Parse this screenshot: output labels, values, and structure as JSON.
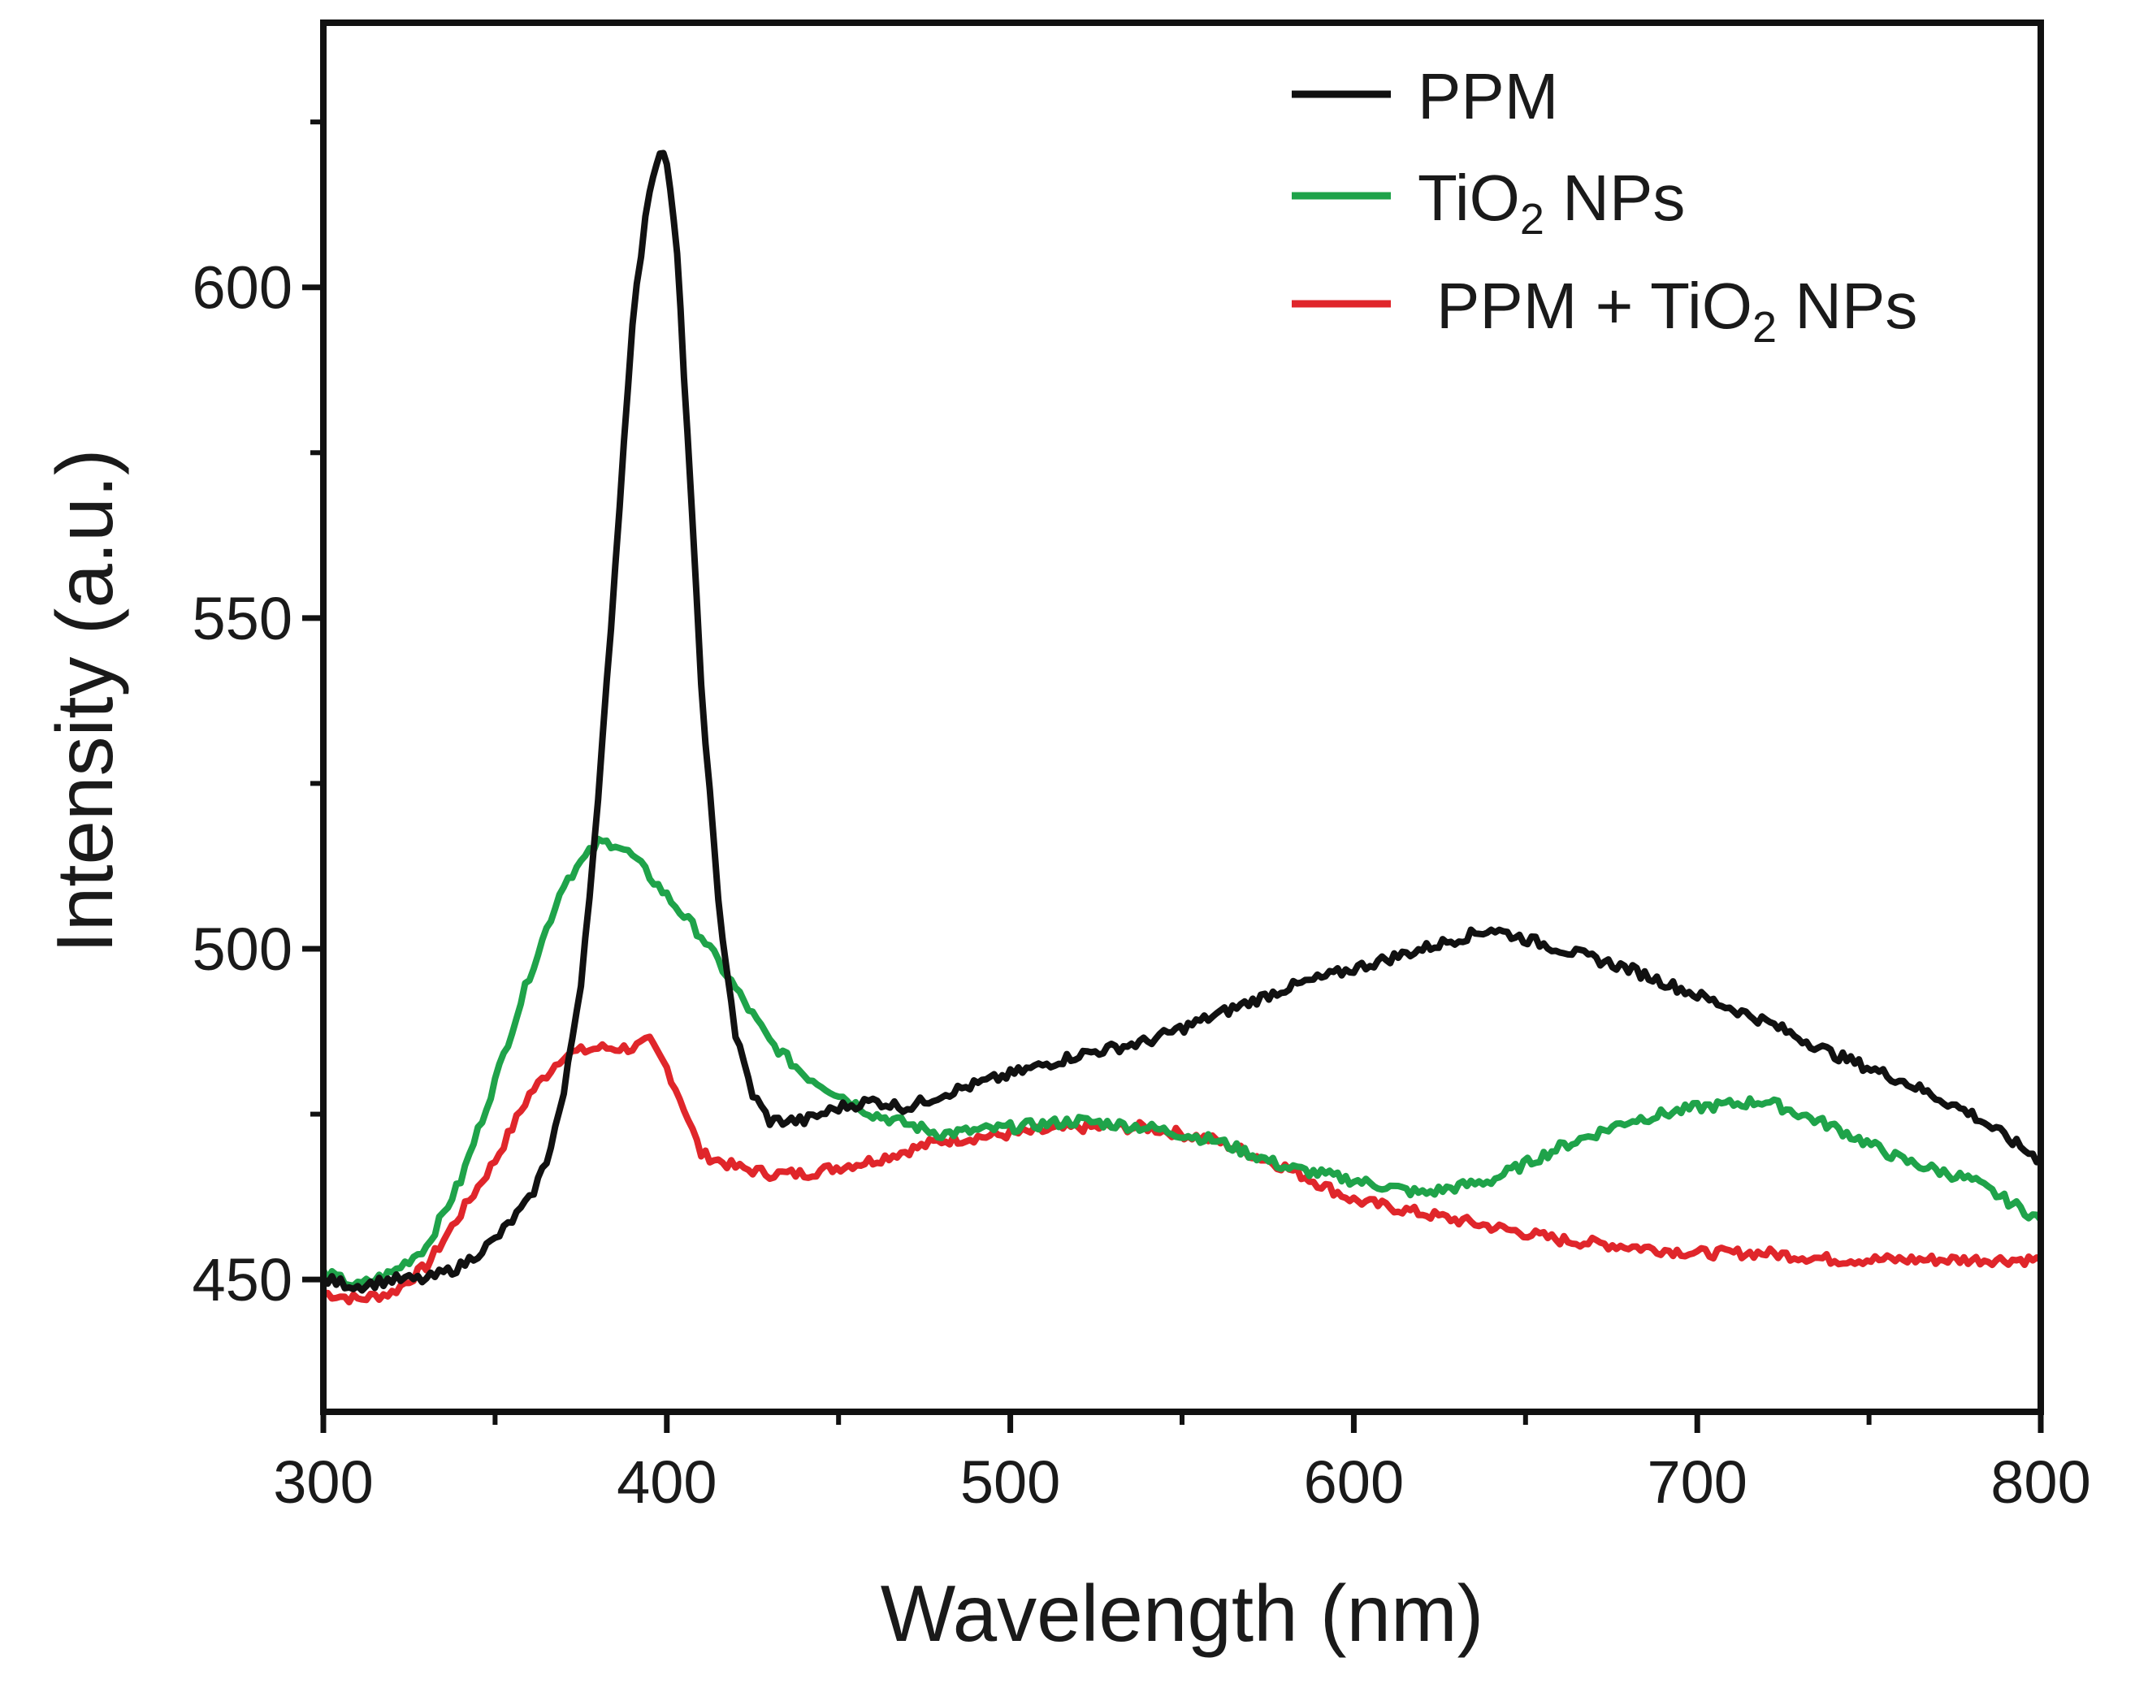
{
  "chart_data": {
    "type": "line",
    "xlabel": "Wavelength (nm)",
    "ylabel": "Intensity (a.u.)",
    "xlim": [
      300,
      800
    ],
    "ylim": [
      430,
      640
    ],
    "xticks": [
      300,
      400,
      500,
      600,
      700,
      800
    ],
    "yticks": [
      450,
      500,
      550,
      600
    ],
    "grid": false,
    "legend_position": "top-right",
    "series": [
      {
        "name": "PPM",
        "legend_parts": [
          "PPM"
        ],
        "color": "#111111",
        "x": [
          300,
          310,
          320,
          330,
          340,
          350,
          360,
          365,
          370,
          375,
          380,
          385,
          390,
          395,
          398,
          400,
          403,
          406,
          410,
          415,
          420,
          425,
          430,
          440,
          450,
          460,
          470,
          480,
          500,
          520,
          540,
          560,
          580,
          600,
          620,
          640,
          660,
          680,
          700,
          720,
          740,
          760,
          780,
          800
        ],
        "y": [
          450,
          449,
          450,
          450,
          452,
          456,
          462,
          468,
          478,
          495,
          522,
          558,
          595,
          615,
          621,
          619,
          605,
          578,
          540,
          507,
          487,
          478,
          474,
          474,
          476,
          477,
          476,
          478,
          481,
          484,
          486,
          490,
          494,
          497,
          500,
          503,
          500,
          497,
          493,
          489,
          484,
          480,
          475,
          468
        ]
      },
      {
        "name": "TiO2 NPs",
        "legend_parts": [
          "TiO",
          "2",
          " NPs"
        ],
        "color": "#1fa34a",
        "x": [
          300,
          310,
          320,
          330,
          340,
          350,
          360,
          370,
          380,
          385,
          390,
          400,
          410,
          420,
          430,
          440,
          450,
          460,
          480,
          500,
          520,
          540,
          560,
          580,
          600,
          620,
          640,
          660,
          680,
          700,
          720,
          740,
          760,
          780,
          800
        ],
        "y": [
          451,
          449,
          451,
          455,
          465,
          480,
          496,
          510,
          516,
          516,
          514,
          508,
          502,
          494,
          486,
          481,
          478,
          475,
          472,
          473,
          474,
          473,
          471,
          467,
          465,
          463,
          465,
          470,
          474,
          476,
          477,
          473,
          468,
          465,
          459
        ]
      },
      {
        "name": "PPM + TiO2 NPs",
        "legend_parts": [
          "PPM + TiO",
          "2",
          " NPs"
        ],
        "color": "#e0262b",
        "x": [
          300,
          310,
          320,
          330,
          340,
          350,
          360,
          370,
          380,
          390,
          395,
          400,
          405,
          410,
          420,
          430,
          440,
          460,
          480,
          500,
          520,
          540,
          560,
          580,
          600,
          620,
          640,
          660,
          680,
          700,
          720,
          740,
          760,
          780,
          800
        ],
        "y": [
          448,
          447,
          448,
          452,
          460,
          468,
          478,
          484,
          485,
          485,
          486,
          482,
          476,
          469,
          467,
          466,
          466,
          468,
          471,
          472,
          473,
          473,
          471,
          467,
          462,
          460,
          458,
          456,
          455,
          454,
          454,
          453,
          453,
          453,
          453
        ]
      }
    ]
  }
}
